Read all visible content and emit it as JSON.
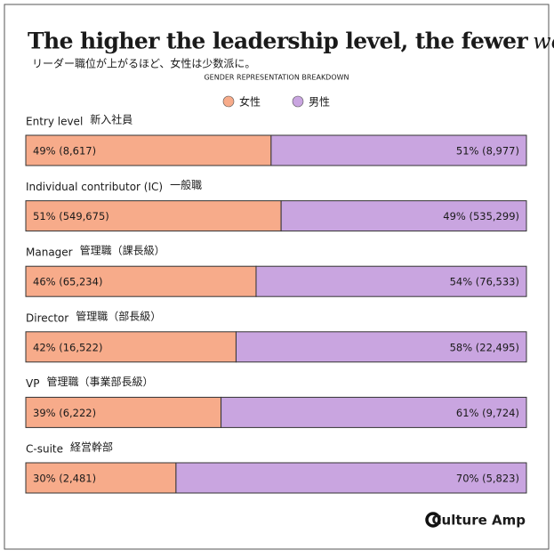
{
  "chart_data": {
    "type": "stacked-bar",
    "title": "The higher the leadership level, the fewer",
    "title_accent": "women",
    "subtitle": "リーダー職位が上がるほど、女性は少数派に。",
    "section_label": "GENDER REPRESENTATION BREAKDOWN",
    "categories": [
      "Entry level",
      "Individual contributor (IC)",
      "Manager",
      "Director",
      "VP",
      "C-suite"
    ],
    "categories_ja": [
      "新入社員",
      "一般職",
      "管理職（課長級）",
      "管理職（部長級）",
      "管理職（事業部長級）",
      "経営幹部"
    ],
    "xlim": [
      0,
      100
    ],
    "series": [
      {
        "name": "女性",
        "color": "#f7ab8a",
        "values": [
          49,
          51,
          46,
          42,
          39,
          30
        ],
        "value_labels": [
          "49% (8,617)",
          "51% (549,675)",
          "46% (65,234)",
          "42% (16,522)",
          "39% (6,222)",
          "30% (2,481)"
        ]
      },
      {
        "name": "男性",
        "color": "#c9a5e0",
        "values": [
          51,
          49,
          54,
          58,
          61,
          70
        ],
        "value_labels": [
          "51% (8,977)",
          "49% (535,299)",
          "54% (76,533)",
          "58% (22,495)",
          "61% (9,724)",
          "70% (5,823)"
        ]
      }
    ],
    "brand": "Culture Amp"
  }
}
